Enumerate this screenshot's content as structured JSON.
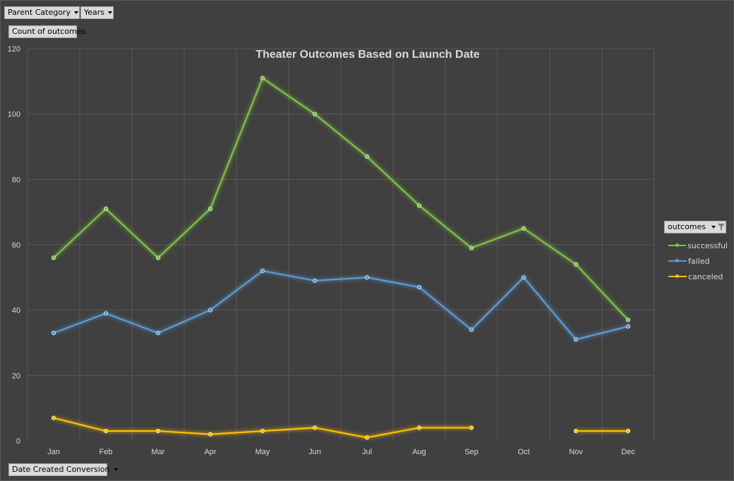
{
  "pivot": {
    "filter_parent_category": "Parent Category",
    "filter_years": "Years",
    "value_field": "Count of outcomes",
    "axis_field": "Date Created Conversion",
    "legend_field": "outcomes"
  },
  "colors": {
    "background": "#404040",
    "grid": "#595959",
    "successful": "#7fc241",
    "failed": "#5b9bd5",
    "canceled": "#ffc000"
  },
  "chart_data": {
    "type": "line",
    "title": "Theater Outcomes Based on Launch Date",
    "xlabel": "",
    "ylabel": "",
    "categories": [
      "Jan",
      "Feb",
      "Mar",
      "Apr",
      "May",
      "Jun",
      "Jul",
      "Aug",
      "Sep",
      "Oct",
      "Nov",
      "Dec"
    ],
    "ylim": [
      0,
      120
    ],
    "yticks": [
      "0",
      "20",
      "40",
      "60",
      "80",
      "100",
      "120"
    ],
    "grid": true,
    "legend_position": "right",
    "series": [
      {
        "name": "successful",
        "values": [
          56,
          71,
          56,
          71,
          111,
          100,
          87,
          72,
          59,
          65,
          54,
          37
        ]
      },
      {
        "name": "failed",
        "values": [
          33,
          39,
          33,
          40,
          52,
          49,
          50,
          47,
          34,
          50,
          31,
          35
        ]
      },
      {
        "name": "canceled",
        "values": [
          7,
          3,
          3,
          2,
          3,
          4,
          1,
          4,
          4,
          null,
          3,
          3
        ]
      }
    ]
  }
}
